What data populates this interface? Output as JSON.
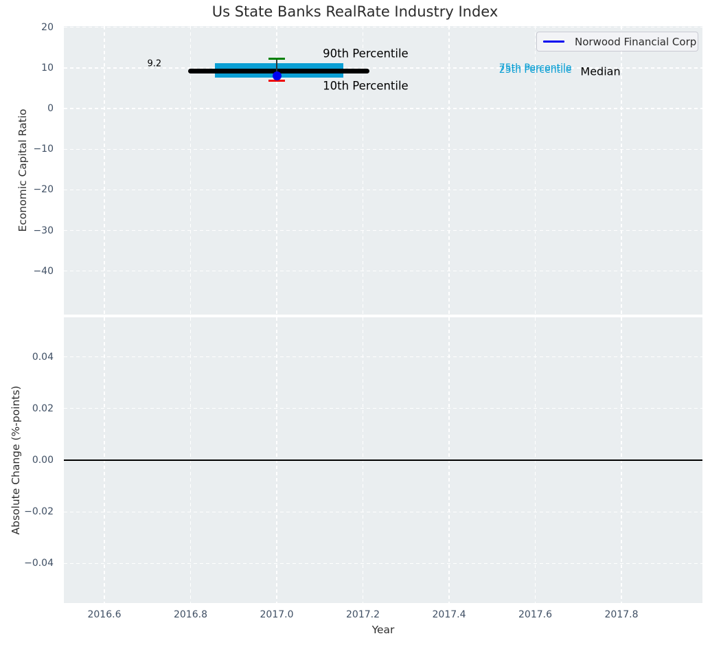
{
  "title": "Us State Banks RealRate Industry Index",
  "legend": {
    "label": "Norwood Financial Corp",
    "line_color": "#0000f0",
    "position": "upper right"
  },
  "colors": {
    "figure_bg": "#ffffff",
    "axes_bg": "#eaeef0",
    "grid": "#ffffff",
    "tick_label": "#3e4e63",
    "text": "#2e2e2e",
    "median": "#000000",
    "iqr_band": "#0b9fd4",
    "p90_cap": "#008000",
    "p10_cap": "#ef0000",
    "whisker_line": "#2f3437",
    "company_point": "#0000f0",
    "zero_line": "#000000"
  },
  "chart_data": [
    {
      "name": "economic-capital-ratio-panel",
      "type": "line",
      "ylabel": "Economic Capital Ratio",
      "xlim": [
        2016.506,
        2017.988
      ],
      "ylim": [
        -50.7,
        20.3
      ],
      "grid": "white-dashed",
      "xticks": [
        2016.6,
        2016.8,
        2017.0,
        2017.2,
        2017.4,
        2017.6,
        2017.8
      ],
      "yticks": [
        20,
        10,
        0,
        -10,
        -20,
        -30,
        -40
      ],
      "ytick_labels": [
        "20",
        "10",
        "0",
        "−10",
        "−20",
        "−30",
        "−40"
      ],
      "median": {
        "x": [
          2016.8,
          2017.21
        ],
        "value": 9.2
      },
      "iqr_band": {
        "x": [
          2016.856,
          2017.154
        ],
        "p25": 7.6,
        "p75": 11.2
      },
      "whisker": {
        "x": 2017.0,
        "p10": 6.8,
        "p90": 12.3,
        "cap_halfwidth_years": 0.019
      },
      "company_point": {
        "name": "Norwood Financial Corp",
        "x": 2017.0,
        "y": 8.1
      },
      "annotations": [
        {
          "text": "9.2",
          "x": 2016.716,
          "y": 11.0,
          "color": "#000000",
          "size": 13,
          "align": "center"
        },
        {
          "text": "90th Percentile",
          "x": 2017.107,
          "y": 13.6,
          "color": "#000000",
          "size": 16.5,
          "align": "left"
        },
        {
          "text": "10th Percentile",
          "x": 2017.107,
          "y": 5.6,
          "color": "#000000",
          "size": 16.5,
          "align": "left"
        },
        {
          "text": "75th Percentile",
          "x": 2017.516,
          "y": 10.0,
          "color": "#0b9fd4",
          "size": 14,
          "align": "left"
        },
        {
          "text": "25th Percentile",
          "x": 2017.516,
          "y": 9.55,
          "color": "#0b9fd4",
          "size": 14,
          "align": "left"
        },
        {
          "text": "Median",
          "x": 2017.705,
          "y": 9.2,
          "color": "#000000",
          "size": 16,
          "align": "left"
        }
      ]
    },
    {
      "name": "absolute-change-panel",
      "type": "line",
      "ylabel": "Absolute Change (%-points)",
      "xlabel": "Year",
      "xlim": [
        2016.506,
        2017.988
      ],
      "ylim": [
        -0.0553,
        0.0553
      ],
      "grid": "white-dashed",
      "xticks": [
        2016.6,
        2016.8,
        2017.0,
        2017.2,
        2017.4,
        2017.6,
        2017.8
      ],
      "xtick_labels": [
        "2016.6",
        "2016.8",
        "2017.0",
        "2017.2",
        "2017.4",
        "2017.6",
        "2017.8"
      ],
      "yticks": [
        0.04,
        0.02,
        0.0,
        -0.02,
        -0.04
      ],
      "ytick_labels": [
        "0.04",
        "0.02",
        "0.00",
        "−0.02",
        "−0.04"
      ],
      "zero_line": 0.0,
      "series": []
    }
  ]
}
